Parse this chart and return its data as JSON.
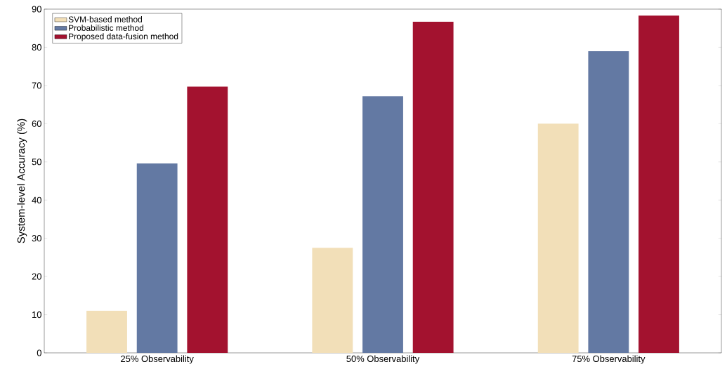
{
  "chart_data": {
    "type": "bar",
    "ylabel": "System-level Accuracy (%)",
    "categories": [
      "25% Observability",
      "50% Observability",
      "75% Observability"
    ],
    "series": [
      {
        "name": "SVM-based method",
        "color": "#f2dfb8",
        "values": [
          11,
          27.5,
          60
        ]
      },
      {
        "name": "Probabilistic method",
        "color": "#6379a3",
        "values": [
          49.6,
          67.2,
          79
        ]
      },
      {
        "name": "Proposed data-fusion method",
        "color": "#a3122f",
        "values": [
          69.7,
          86.7,
          88.3
        ]
      }
    ],
    "ylim": [
      0,
      90
    ],
    "yticks": [
      0,
      10,
      20,
      30,
      40,
      50,
      60,
      70,
      80,
      90
    ],
    "legend": "top left"
  }
}
